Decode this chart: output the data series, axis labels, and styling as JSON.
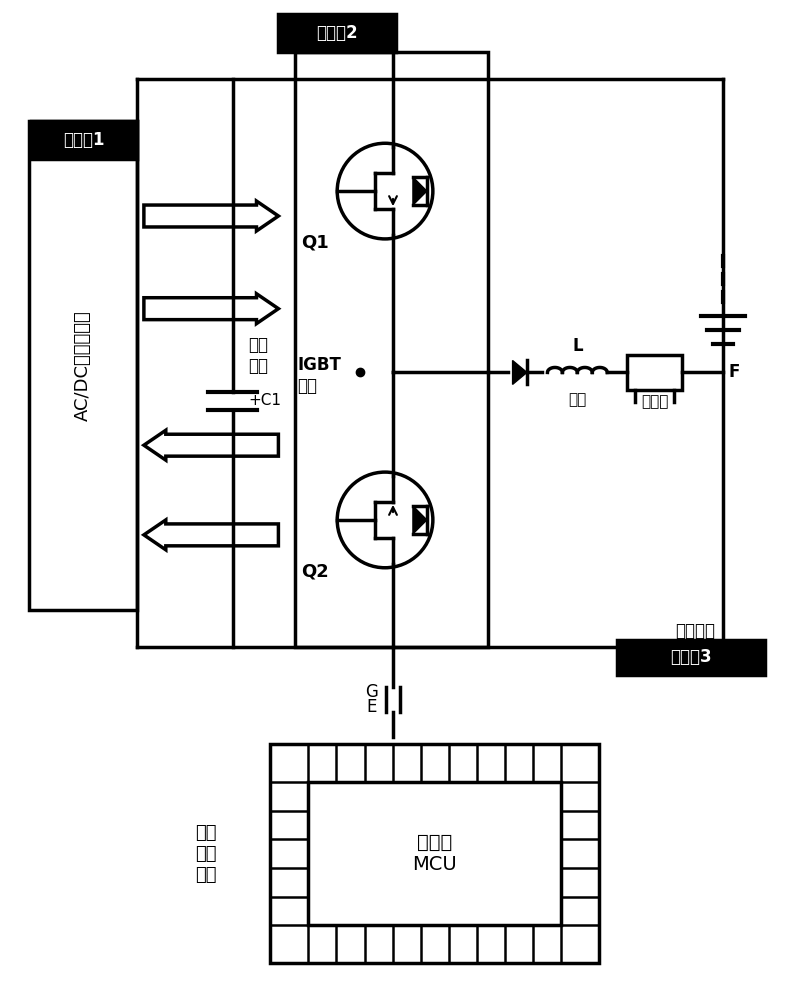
{
  "bg_color": "#ffffff",
  "line_color": "#000000",
  "label_tp1": "测试点1",
  "label_tp2": "测试点2",
  "label_tp3": "测试点3",
  "label_acdc": "AC/DC双向逆变器",
  "label_cap": "电解\n电容",
  "label_c1": "+C1",
  "label_igbt": "IGBT\n模块",
  "label_q1": "Q1",
  "label_q2": "Q2",
  "label_l": "L",
  "label_inductor": "电感",
  "label_shunt": "分流器",
  "label_f": "F",
  "label_battery": "电池负载",
  "label_ge_g": "G",
  "label_ge_e": "E",
  "label_normal": "常规\n工作\n方式",
  "label_mcu": "单片机\nMCU",
  "fig_width": 7.88,
  "fig_height": 10.0,
  "line_width": 2.5
}
